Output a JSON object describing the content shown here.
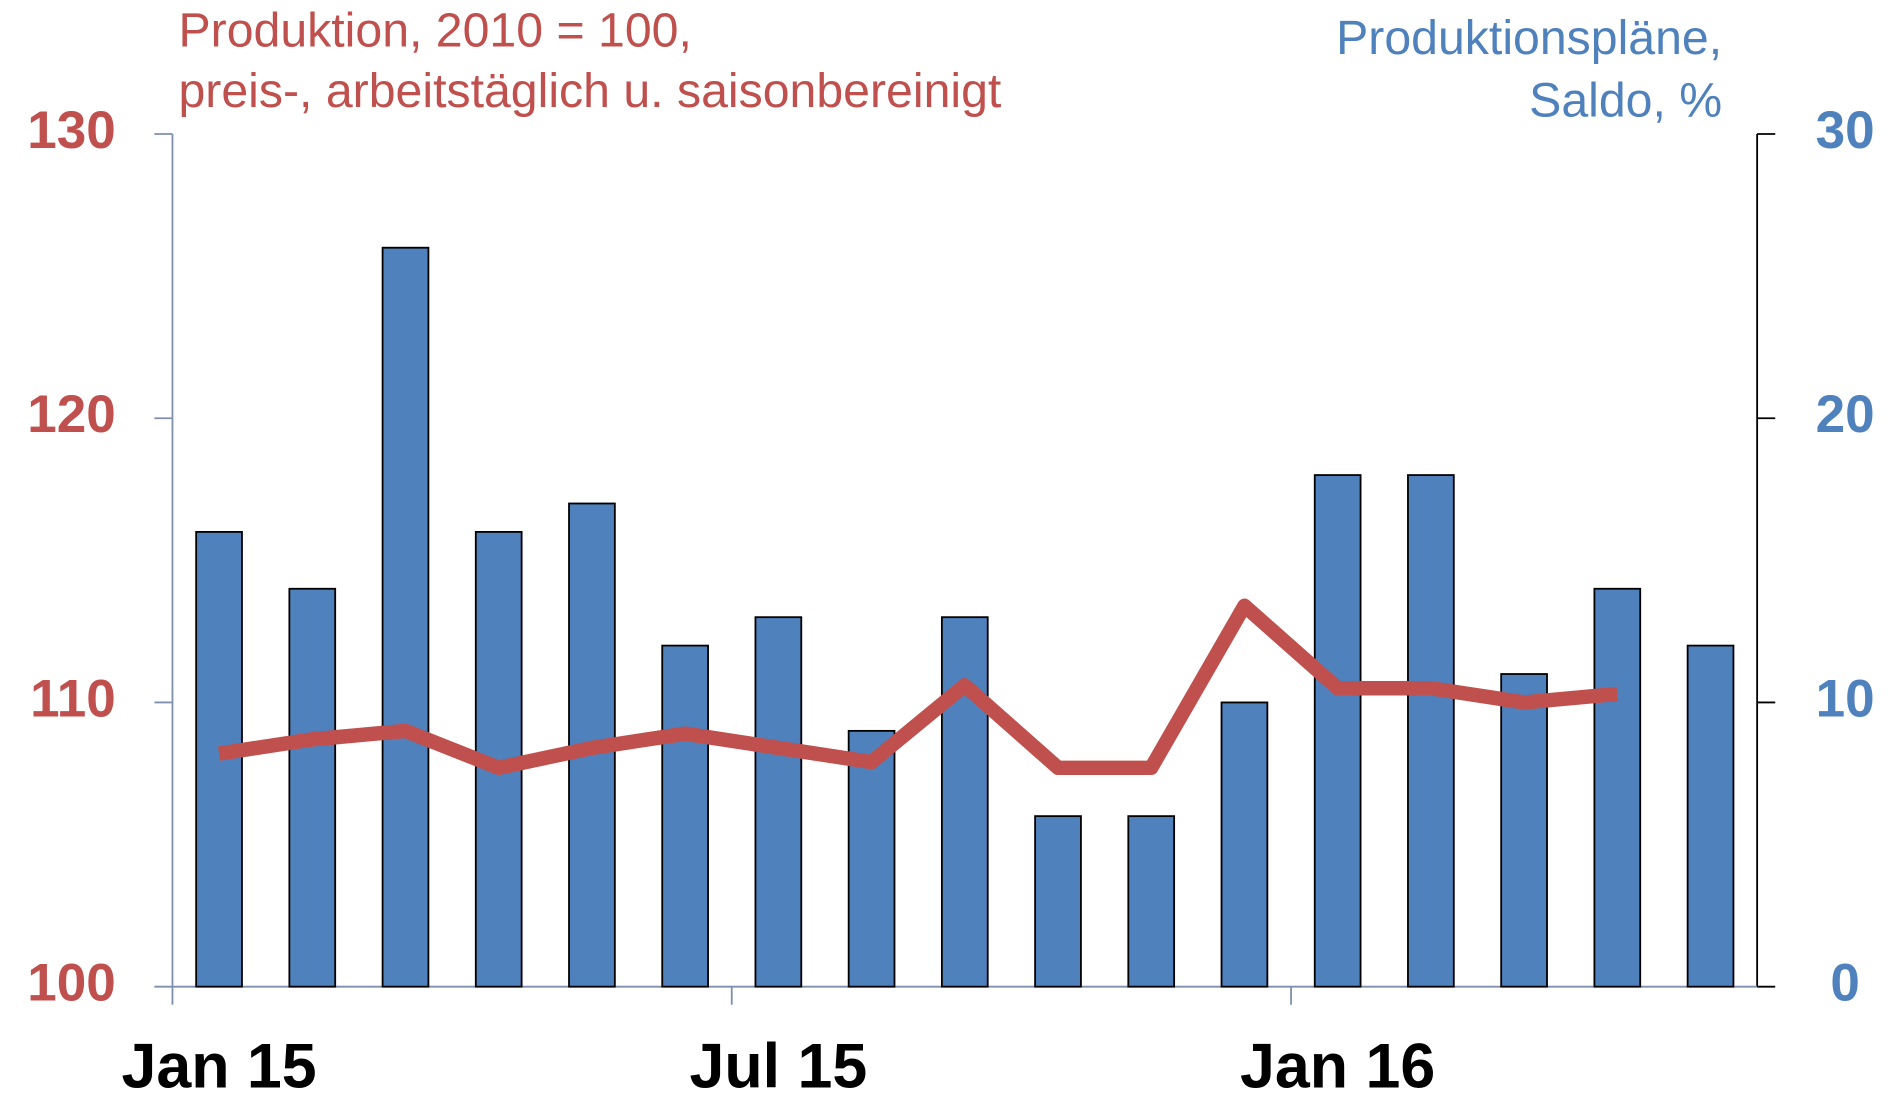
{
  "chart_data": {
    "type": "bar",
    "y_label": [
      "Produktion, 2010 = 100,",
      "preis-, arbeitstäglich u. saisonbereinigt"
    ],
    "y2_label": [
      "Produktionspläne,",
      "Saldo, %"
    ],
    "categories": [
      "Jan 15",
      null,
      null,
      null,
      null,
      null,
      "Jul 15",
      null,
      null,
      null,
      null,
      null,
      "Jan 16",
      null,
      null,
      null,
      null
    ],
    "series": [
      {
        "type": "bar",
        "axis": "y2",
        "color": "#4f81bd",
        "values": [
          16,
          14,
          26,
          16,
          17,
          12,
          13,
          9,
          13,
          6,
          6,
          10,
          18,
          18,
          11,
          14,
          12
        ]
      },
      {
        "type": "line",
        "axis": "y",
        "color": "#c0504d",
        "values": [
          108.2,
          108.7,
          109.0,
          107.7,
          108.4,
          108.9,
          108.4,
          107.9,
          110.6,
          107.7,
          107.7,
          113.4,
          110.5,
          110.5,
          110.0,
          110.3,
          null
        ]
      }
    ],
    "ylim": [
      100,
      130
    ],
    "yticks": [
      100,
      110,
      120,
      130
    ],
    "y2lim": [
      0,
      30
    ],
    "y2ticks": [
      0,
      10,
      20,
      30
    ],
    "ycolor": "#c0504d",
    "y2color": "#4f81bd"
  }
}
